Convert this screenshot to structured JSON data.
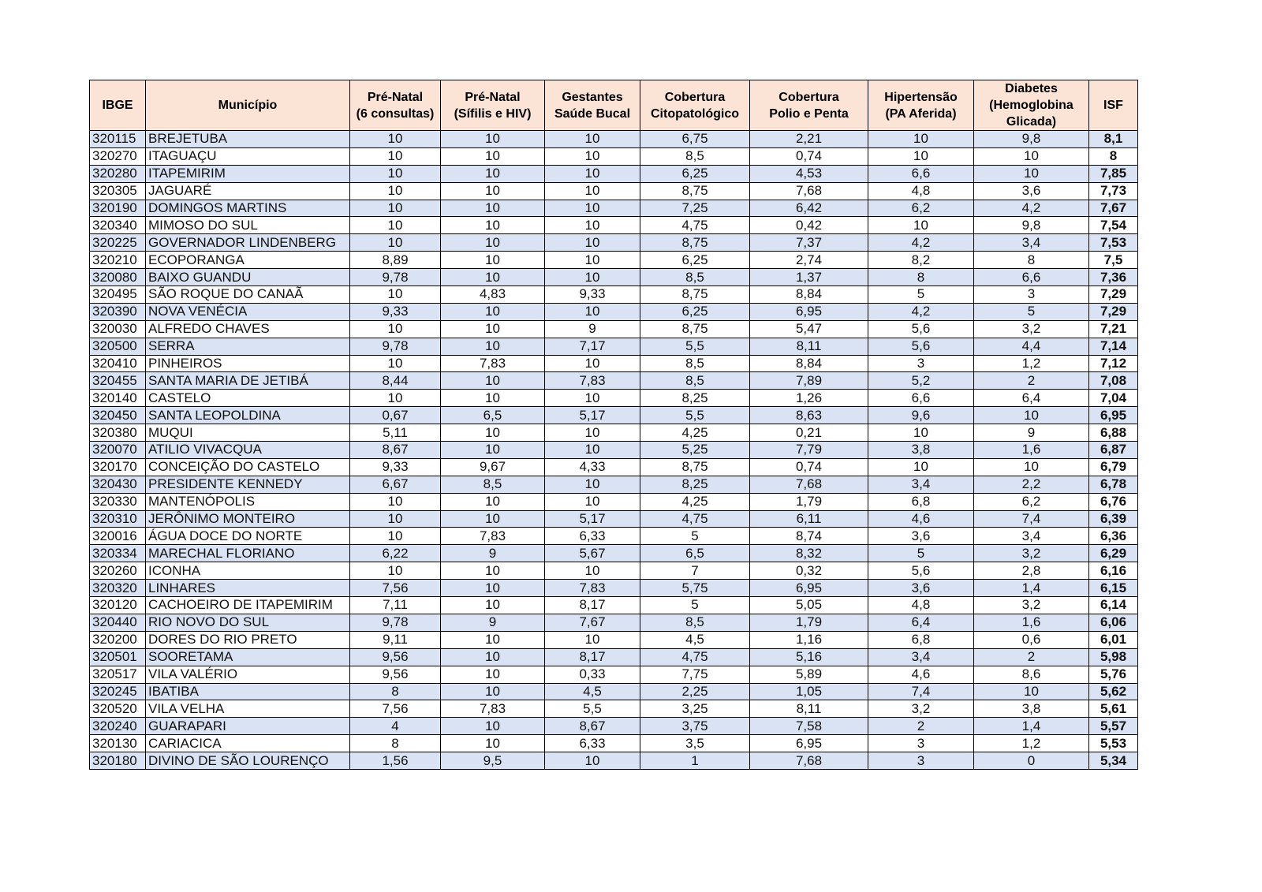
{
  "table": {
    "header": [
      [
        "IBGE"
      ],
      [
        "Município"
      ],
      [
        "Pré-Natal",
        "(6 consultas)"
      ],
      [
        "Pré-Natal",
        "(Sífilis e HIV)"
      ],
      [
        "Gestantes",
        "Saúde Bucal"
      ],
      [
        "Cobertura",
        "Citopatológico"
      ],
      [
        "Cobertura",
        "Polio e Penta"
      ],
      [
        "Hipertensão",
        "(PA Aferida)"
      ],
      [
        "Diabetes",
        "(Hemoglobina",
        "Glicada)"
      ],
      [
        "ISF"
      ]
    ],
    "rows": [
      [
        "320115",
        "BREJETUBA",
        "10",
        "10",
        "10",
        "6,75",
        "2,21",
        "10",
        "9,8",
        "8,1"
      ],
      [
        "320270",
        "ITAGUAÇU",
        "10",
        "10",
        "10",
        "8,5",
        "0,74",
        "10",
        "10",
        "8"
      ],
      [
        "320280",
        "ITAPEMIRIM",
        "10",
        "10",
        "10",
        "6,25",
        "4,53",
        "6,6",
        "10",
        "7,85"
      ],
      [
        "320305",
        "JAGUARÉ",
        "10",
        "10",
        "10",
        "8,75",
        "7,68",
        "4,8",
        "3,6",
        "7,73"
      ],
      [
        "320190",
        "DOMINGOS MARTINS",
        "10",
        "10",
        "10",
        "7,25",
        "6,42",
        "6,2",
        "4,2",
        "7,67"
      ],
      [
        "320340",
        "MIMOSO DO SUL",
        "10",
        "10",
        "10",
        "4,75",
        "0,42",
        "10",
        "9,8",
        "7,54"
      ],
      [
        "320225",
        "GOVERNADOR LINDENBERG",
        "10",
        "10",
        "10",
        "8,75",
        "7,37",
        "4,2",
        "3,4",
        "7,53"
      ],
      [
        "320210",
        "ECOPORANGA",
        "8,89",
        "10",
        "10",
        "6,25",
        "2,74",
        "8,2",
        "8",
        "7,5"
      ],
      [
        "320080",
        "BAIXO GUANDU",
        "9,78",
        "10",
        "10",
        "8,5",
        "1,37",
        "8",
        "6,6",
        "7,36"
      ],
      [
        "320495",
        "SÃO ROQUE DO CANAÃ",
        "10",
        "4,83",
        "9,33",
        "8,75",
        "8,84",
        "5",
        "3",
        "7,29"
      ],
      [
        "320390",
        "NOVA VENÉCIA",
        "9,33",
        "10",
        "10",
        "6,25",
        "6,95",
        "4,2",
        "5",
        "7,29"
      ],
      [
        "320030",
        "ALFREDO CHAVES",
        "10",
        "10",
        "9",
        "8,75",
        "5,47",
        "5,6",
        "3,2",
        "7,21"
      ],
      [
        "320500",
        "SERRA",
        "9,78",
        "10",
        "7,17",
        "5,5",
        "8,11",
        "5,6",
        "4,4",
        "7,14"
      ],
      [
        "320410",
        "PINHEIROS",
        "10",
        "7,83",
        "10",
        "8,5",
        "8,84",
        "3",
        "1,2",
        "7,12"
      ],
      [
        "320455",
        "SANTA MARIA DE JETIBÁ",
        "8,44",
        "10",
        "7,83",
        "8,5",
        "7,89",
        "5,2",
        "2",
        "7,08"
      ],
      [
        "320140",
        "CASTELO",
        "10",
        "10",
        "10",
        "8,25",
        "1,26",
        "6,6",
        "6,4",
        "7,04"
      ],
      [
        "320450",
        "SANTA LEOPOLDINA",
        "0,67",
        "6,5",
        "5,17",
        "5,5",
        "8,63",
        "9,6",
        "10",
        "6,95"
      ],
      [
        "320380",
        "MUQUI",
        "5,11",
        "10",
        "10",
        "4,25",
        "0,21",
        "10",
        "9",
        "6,88"
      ],
      [
        "320070",
        "ATILIO VIVACQUA",
        "8,67",
        "10",
        "10",
        "5,25",
        "7,79",
        "3,8",
        "1,6",
        "6,87"
      ],
      [
        "320170",
        "CONCEIÇÃO DO CASTELO",
        "9,33",
        "9,67",
        "4,33",
        "8,75",
        "0,74",
        "10",
        "10",
        "6,79"
      ],
      [
        "320430",
        "PRESIDENTE KENNEDY",
        "6,67",
        "8,5",
        "10",
        "8,25",
        "7,68",
        "3,4",
        "2,2",
        "6,78"
      ],
      [
        "320330",
        "MANTENÓPOLIS",
        "10",
        "10",
        "10",
        "4,25",
        "1,79",
        "6,8",
        "6,2",
        "6,76"
      ],
      [
        "320310",
        "JERÔNIMO MONTEIRO",
        "10",
        "10",
        "5,17",
        "4,75",
        "6,11",
        "4,6",
        "7,4",
        "6,39"
      ],
      [
        "320016",
        "ÁGUA DOCE DO NORTE",
        "10",
        "7,83",
        "6,33",
        "5",
        "8,74",
        "3,6",
        "3,4",
        "6,36"
      ],
      [
        "320334",
        "MARECHAL FLORIANO",
        "6,22",
        "9",
        "5,67",
        "6,5",
        "8,32",
        "5",
        "3,2",
        "6,29"
      ],
      [
        "320260",
        "ICONHA",
        "10",
        "10",
        "10",
        "7",
        "0,32",
        "5,6",
        "2,8",
        "6,16"
      ],
      [
        "320320",
        "LINHARES",
        "7,56",
        "10",
        "7,83",
        "5,75",
        "6,95",
        "3,6",
        "1,4",
        "6,15"
      ],
      [
        "320120",
        "CACHOEIRO DE ITAPEMIRIM",
        "7,11",
        "10",
        "8,17",
        "5",
        "5,05",
        "4,8",
        "3,2",
        "6,14"
      ],
      [
        "320440",
        "RIO NOVO DO SUL",
        "9,78",
        "9",
        "7,67",
        "8,5",
        "1,79",
        "6,4",
        "1,6",
        "6,06"
      ],
      [
        "320200",
        "DORES DO RIO PRETO",
        "9,11",
        "10",
        "10",
        "4,5",
        "1,16",
        "6,8",
        "0,6",
        "6,01"
      ],
      [
        "320501",
        "SOORETAMA",
        "9,56",
        "10",
        "8,17",
        "4,75",
        "5,16",
        "3,4",
        "2",
        "5,98"
      ],
      [
        "320517",
        "VILA VALÉRIO",
        "9,56",
        "10",
        "0,33",
        "7,75",
        "5,89",
        "4,6",
        "8,6",
        "5,76"
      ],
      [
        "320245",
        "IBATIBA",
        "8",
        "10",
        "4,5",
        "2,25",
        "1,05",
        "7,4",
        "10",
        "5,62"
      ],
      [
        "320520",
        "VILA VELHA",
        "7,56",
        "7,83",
        "5,5",
        "3,25",
        "8,11",
        "3,2",
        "3,8",
        "5,61"
      ],
      [
        "320240",
        "GUARAPARI",
        "4",
        "10",
        "8,67",
        "3,75",
        "7,58",
        "2",
        "1,4",
        "5,57"
      ],
      [
        "320130",
        "CARIACICA",
        "8",
        "10",
        "6,33",
        "3,5",
        "6,95",
        "3",
        "1,2",
        "5,53"
      ],
      [
        "320180",
        "DIVINO DE SÃO LOURENÇO",
        "1,56",
        "9,5",
        "10",
        "1",
        "7,68",
        "3",
        "0",
        "5,34"
      ]
    ]
  }
}
